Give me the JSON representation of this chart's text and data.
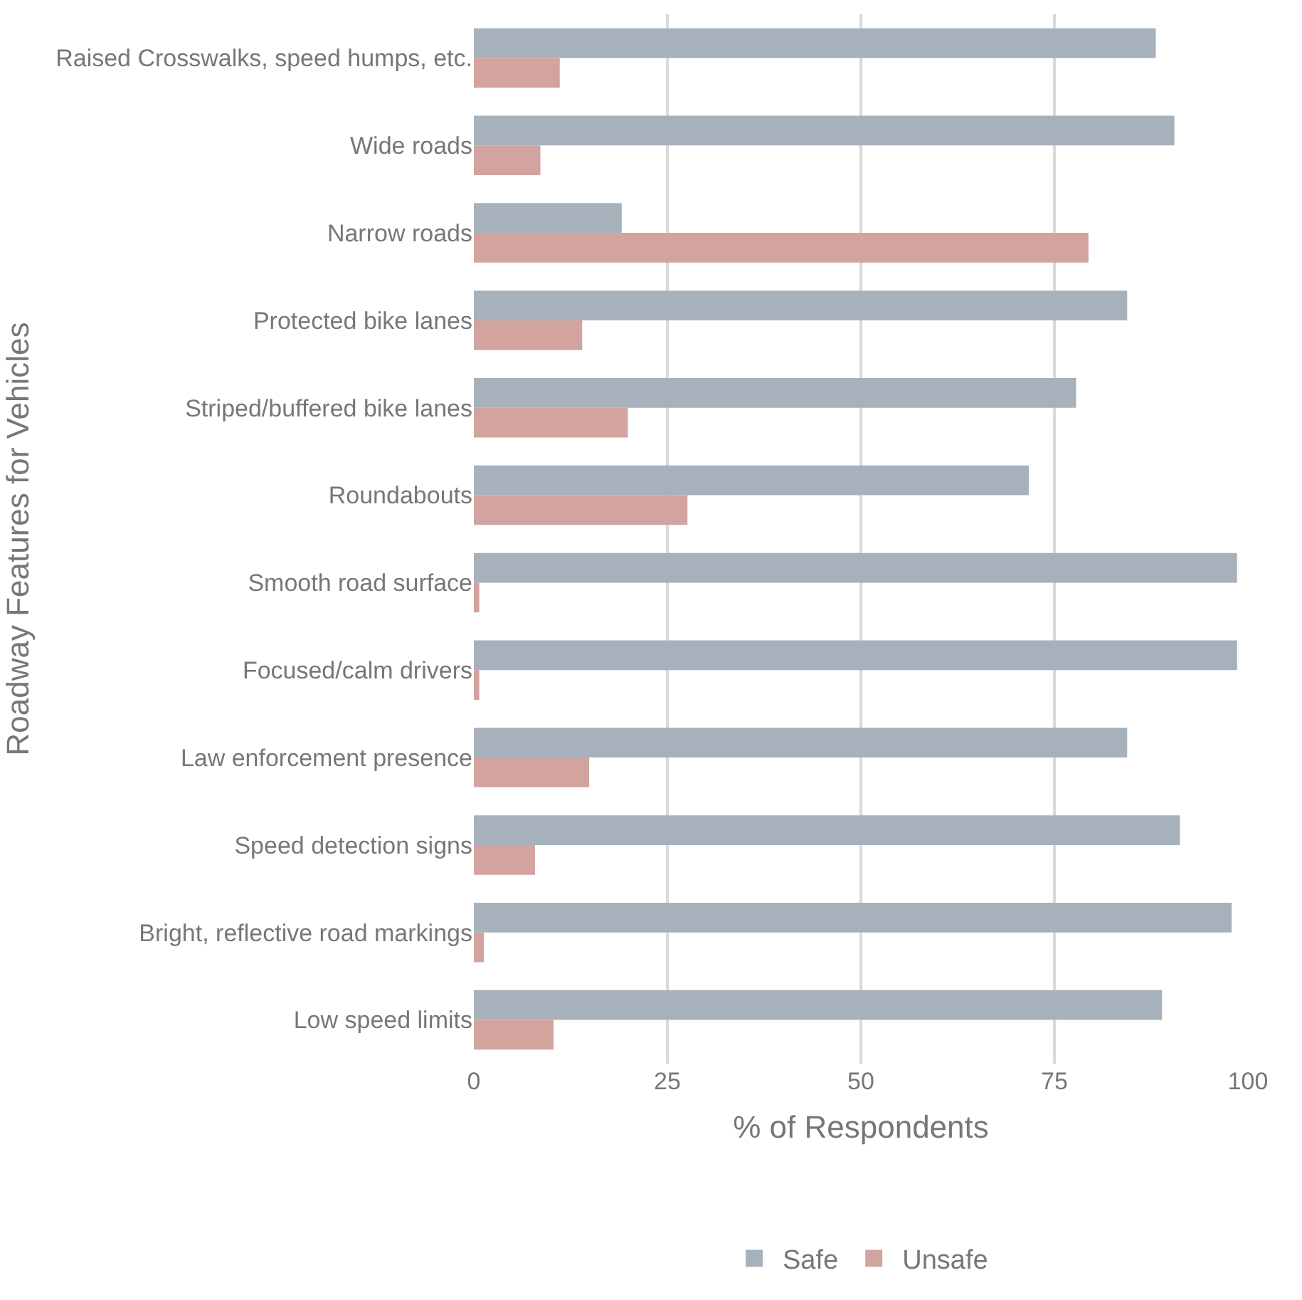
{
  "chart_data": {
    "type": "bar",
    "orientation": "horizontal",
    "xlabel": "% of Respondents",
    "ylabel": "Roadway Features for Vehicles",
    "categories": [
      "Raised Crosswalks, speed humps, etc.",
      "Wide roads",
      "Narrow roads",
      "Protected bike lanes",
      "Striped/buffered bike lanes",
      "Roundabouts",
      "Smooth road surface",
      "Focused/calm drivers",
      "Law enforcement presence",
      "Speed detection signs",
      "Bright, reflective road markings",
      "Low speed limits"
    ],
    "series": [
      {
        "name": "Safe",
        "color": "#a6b1bc",
        "values": [
          88.1,
          90.5,
          19.1,
          84.4,
          77.8,
          71.7,
          98.6,
          98.6,
          84.4,
          91.2,
          97.9,
          88.9
        ]
      },
      {
        "name": "Unsafe",
        "color": "#d2a39f",
        "values": [
          11.1,
          8.6,
          79.4,
          14.0,
          19.9,
          27.6,
          0.7,
          0.7,
          14.9,
          7.9,
          1.3,
          10.3
        ]
      }
    ],
    "xlim": [
      0,
      100
    ],
    "xticks": [
      0,
      25,
      50,
      75,
      100
    ],
    "grid": "x",
    "legend": "bottom"
  }
}
